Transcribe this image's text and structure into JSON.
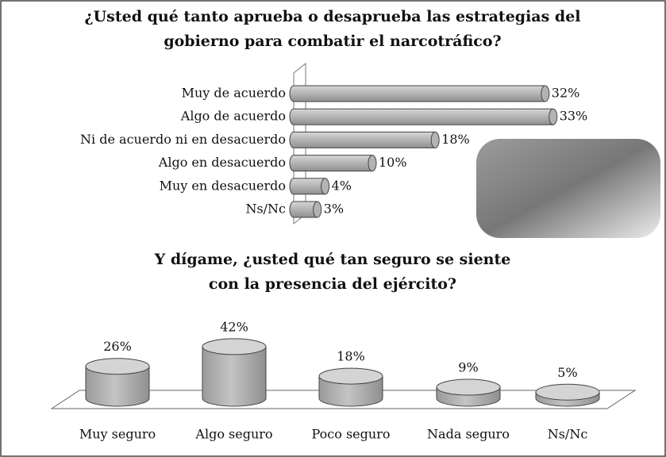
{
  "chart_data": [
    {
      "type": "bar",
      "orientation": "horizontal",
      "title": [
        "¿Usted qué tanto aprueba o desaprueba las estrategias del",
        "gobierno para combatir el narcotráfico?"
      ],
      "categories": [
        "Muy de acuerdo",
        "Algo de acuerdo",
        "Ni de acuerdo ni en desacuerdo",
        "Algo en desacuerdo",
        "Muy en desacuerdo",
        "Ns/Nc"
      ],
      "values": [
        32,
        33,
        18,
        10,
        4,
        3
      ],
      "value_labels": [
        "32%",
        "33%",
        "18%",
        "10%",
        "4%",
        "3%"
      ],
      "color": "#b3b3b3"
    },
    {
      "type": "bar",
      "orientation": "vertical",
      "title": [
        "Y dígame, ¿usted qué tan seguro se siente",
        "con la presencia del ejército?"
      ],
      "categories": [
        "Muy seguro",
        "Algo seguro",
        "Poco seguro",
        "Nada seguro",
        "Ns/Nc"
      ],
      "values": [
        26,
        42,
        18,
        9,
        5
      ],
      "value_labels": [
        "26%",
        "42%",
        "18%",
        "9%",
        "5%"
      ],
      "color": "#b3b3b3"
    }
  ]
}
